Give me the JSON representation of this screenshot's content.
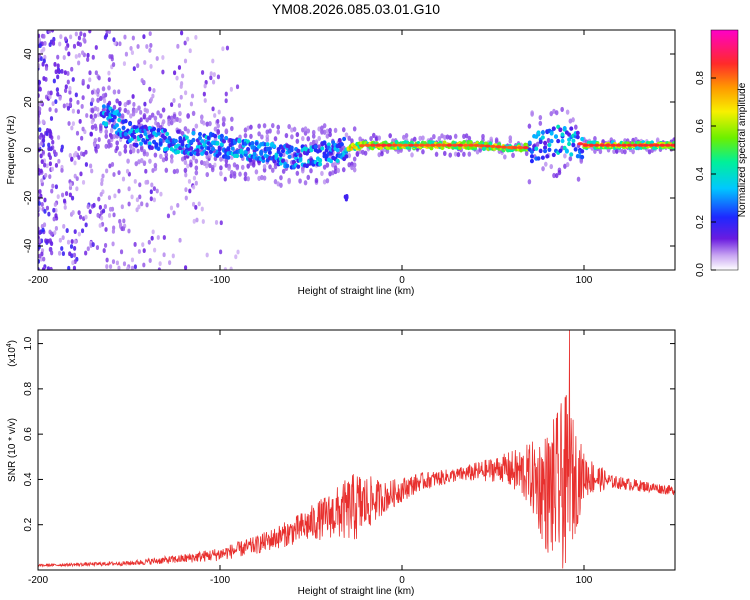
{
  "title": "YM08.2026.085.03.01.G10",
  "chart_data": [
    {
      "type": "heatmap",
      "name": "spectrogram",
      "xlabel": "Height of straight line (km)",
      "ylabel": "Frequency (Hz)",
      "xlim": [
        -200,
        150
      ],
      "ylim": [
        -50,
        50
      ],
      "xticks": [
        -200,
        -100,
        0,
        100
      ],
      "yticks": [
        -40,
        -20,
        0,
        20,
        40
      ],
      "colorbar": {
        "label": "Normalized spectral amplitude",
        "range": [
          0,
          1
        ],
        "ticks": [
          "0.0",
          "0.2",
          "0.4",
          "0.6",
          "0.8"
        ]
      },
      "ridge": [
        {
          "x": -160,
          "y": 14
        },
        {
          "x": -150,
          "y": 7
        },
        {
          "x": -140,
          "y": 5
        },
        {
          "x": -120,
          "y": 3
        },
        {
          "x": -100,
          "y": 2
        },
        {
          "x": -80,
          "y": -1
        },
        {
          "x": -60,
          "y": -3
        },
        {
          "x": -40,
          "y": -1
        },
        {
          "x": -30,
          "y": 1
        },
        {
          "x": -20,
          "y": 2
        },
        {
          "x": 0,
          "y": 2
        },
        {
          "x": 40,
          "y": 2
        },
        {
          "x": 60,
          "y": 1
        },
        {
          "x": 70,
          "y": 1
        },
        {
          "x": 80,
          "y": 3
        },
        {
          "x": 90,
          "y": 5
        },
        {
          "x": 100,
          "y": 2
        },
        {
          "x": 150,
          "y": 2
        }
      ]
    },
    {
      "type": "line",
      "name": "snr",
      "xlabel": "Height of straight line (km)",
      "ylabel": "SNR (10 * v/v)",
      "scale_label": "(x10",
      "scale_exp": "4",
      "xlim": [
        -200,
        150
      ],
      "ylim": [
        0,
        1.06
      ],
      "xticks": [
        -200,
        -100,
        0,
        100
      ],
      "yticks": [
        0.2,
        0.4,
        0.6,
        0.8,
        1.0
      ],
      "color": "#e8302e",
      "envelope": [
        {
          "x": -200,
          "base": 0.02,
          "amp": 0.005
        },
        {
          "x": -150,
          "base": 0.03,
          "amp": 0.01
        },
        {
          "x": -120,
          "base": 0.05,
          "amp": 0.02
        },
        {
          "x": -100,
          "base": 0.07,
          "amp": 0.03
        },
        {
          "x": -80,
          "base": 0.11,
          "amp": 0.04
        },
        {
          "x": -60,
          "base": 0.17,
          "amp": 0.06
        },
        {
          "x": -40,
          "base": 0.24,
          "amp": 0.1
        },
        {
          "x": -25,
          "base": 0.28,
          "amp": 0.16
        },
        {
          "x": -10,
          "base": 0.32,
          "amp": 0.07
        },
        {
          "x": 10,
          "base": 0.39,
          "amp": 0.04
        },
        {
          "x": 30,
          "base": 0.42,
          "amp": 0.03
        },
        {
          "x": 55,
          "base": 0.45,
          "amp": 0.06
        },
        {
          "x": 70,
          "base": 0.42,
          "amp": 0.14
        },
        {
          "x": 80,
          "base": 0.34,
          "amp": 0.28
        },
        {
          "x": 90,
          "base": 0.38,
          "amp": 0.4
        },
        {
          "x": 100,
          "base": 0.42,
          "amp": 0.1
        },
        {
          "x": 115,
          "base": 0.39,
          "amp": 0.03
        },
        {
          "x": 150,
          "base": 0.35,
          "amp": 0.02
        }
      ],
      "peak": {
        "x": 92,
        "y": 1.06
      }
    }
  ]
}
